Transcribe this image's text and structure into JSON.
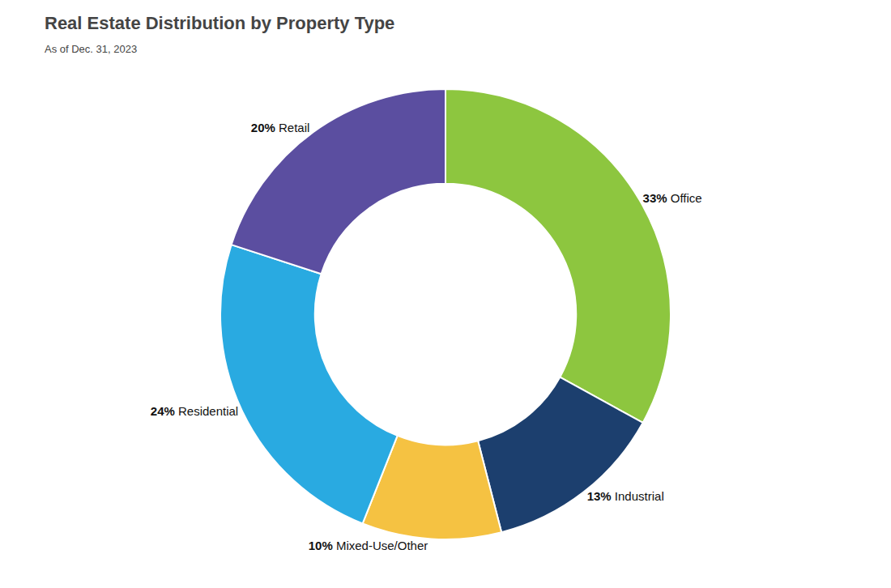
{
  "chart_data": {
    "type": "pie",
    "title": "Real Estate Distribution by Property Type",
    "subtitle": "As of Dec. 31, 2023",
    "categories": [
      "Office",
      "Industrial",
      "Mixed-Use/Other",
      "Residential",
      "Retail"
    ],
    "values": [
      33,
      13,
      10,
      24,
      20
    ],
    "value_labels": [
      "33%",
      "13%",
      "10%",
      "24%",
      "20%"
    ],
    "colors": [
      "#8dc63f",
      "#1c3f6e",
      "#f5c242",
      "#29aae1",
      "#5b4ea0"
    ],
    "data_labels": true
  }
}
